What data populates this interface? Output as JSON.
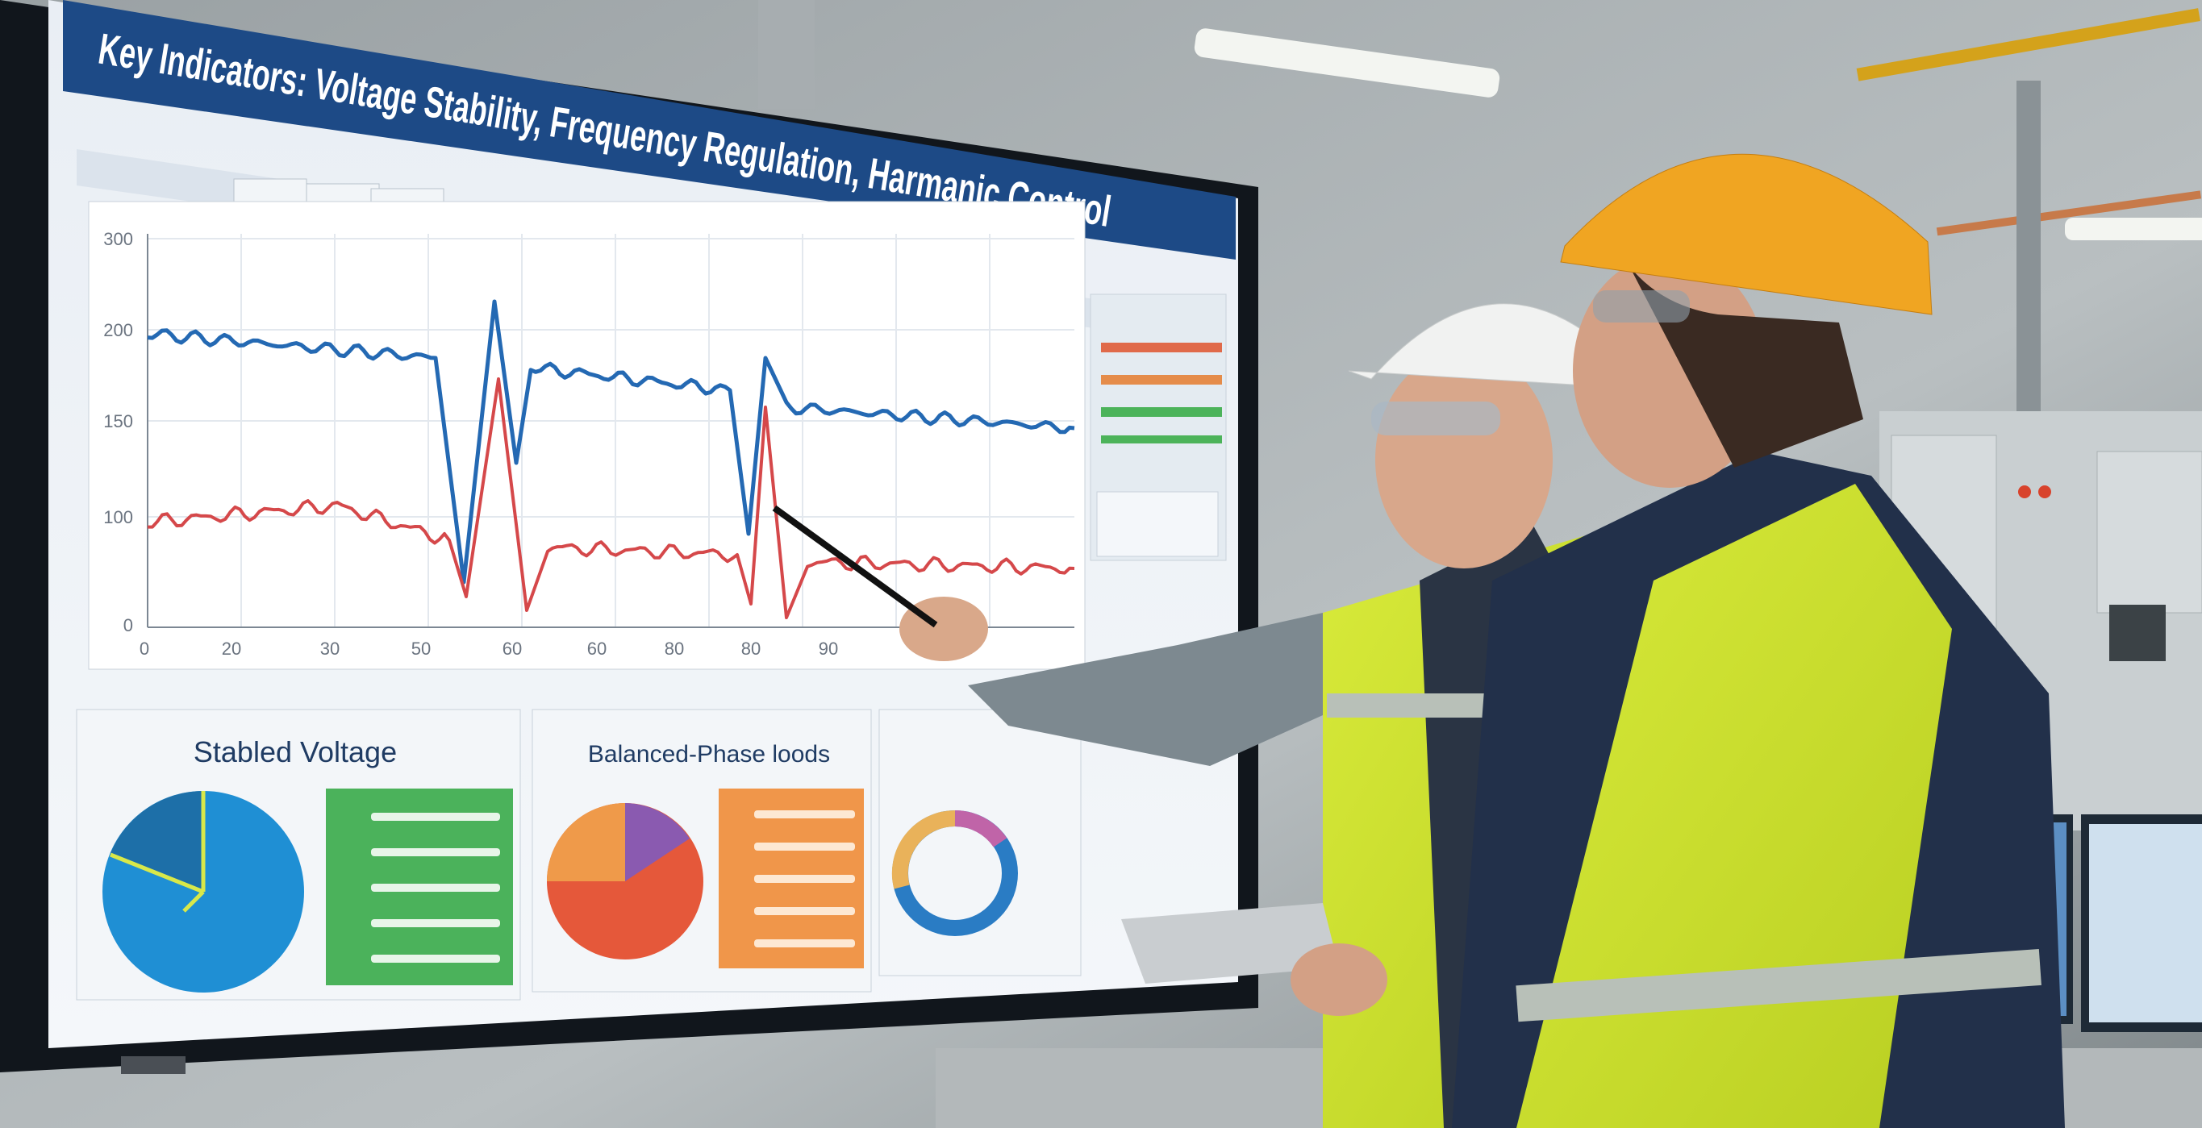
{
  "screen": {
    "title": "Key Indicators: Voltage Stability, Frequency Regulation, Harmanic Control",
    "chart": {
      "y_labels": [
        "300",
        "200",
        "150",
        "100",
        "0"
      ],
      "x_labels": [
        "0",
        "20",
        "30",
        "50",
        "60",
        "60",
        "80",
        "80",
        "90"
      ]
    },
    "panels": [
      {
        "title": "Stabled Voltage"
      },
      {
        "title": "Balanced-Phase loods"
      }
    ]
  }
}
